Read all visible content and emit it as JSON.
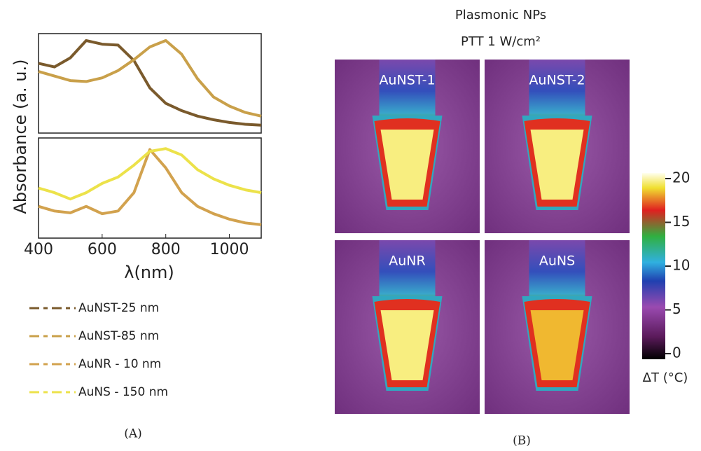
{
  "panel_a": {
    "y_label": "Absorbance (a. u.)",
    "x_label": "λ(nm)",
    "xlim": [
      400,
      1100
    ],
    "xticks": [
      400,
      600,
      800,
      1000
    ],
    "ylim": [
      0,
      1
    ],
    "x": [
      400,
      450,
      500,
      550,
      600,
      650,
      700,
      750,
      800,
      850,
      900,
      950,
      1000,
      1050,
      1100
    ],
    "plots": [
      {
        "series": [
          {
            "name": "AuNST-25 nm",
            "color": "#7a5a2c",
            "values": [
              0.72,
              0.68,
              0.78,
              0.97,
              0.93,
              0.92,
              0.75,
              0.45,
              0.28,
              0.2,
              0.14,
              0.1,
              0.07,
              0.05,
              0.04
            ]
          },
          {
            "name": "AuNST-85 nm",
            "color": "#c9a04a",
            "values": [
              0.63,
              0.58,
              0.53,
              0.52,
              0.56,
              0.64,
              0.76,
              0.9,
              0.97,
              0.82,
              0.55,
              0.35,
              0.25,
              0.18,
              0.14
            ]
          }
        ]
      },
      {
        "series": [
          {
            "name": "AuNR - 10 nm",
            "color": "#d2a24e",
            "values": [
              0.3,
              0.25,
              0.23,
              0.3,
              0.22,
              0.25,
              0.45,
              0.92,
              0.72,
              0.45,
              0.3,
              0.22,
              0.16,
              0.12,
              0.1
            ]
          },
          {
            "name": "AuNS - 150 nm",
            "color": "#ece24a",
            "values": [
              0.5,
              0.45,
              0.38,
              0.45,
              0.55,
              0.62,
              0.75,
              0.9,
              0.93,
              0.86,
              0.7,
              0.6,
              0.53,
              0.48,
              0.45
            ]
          }
        ]
      }
    ],
    "caption": "(A)"
  },
  "panel_b": {
    "title": "Plasmonic NPs",
    "subtitle": "PTT 1 W/cm²",
    "images": [
      "AuNST-1",
      "AuNST-2",
      "AuNR",
      "AuNS"
    ],
    "colorbar": {
      "label": "ΔT (°C)",
      "lim": [
        0,
        20
      ],
      "ticks": [
        0,
        5,
        10,
        15,
        20
      ]
    },
    "caption": "(B)"
  }
}
